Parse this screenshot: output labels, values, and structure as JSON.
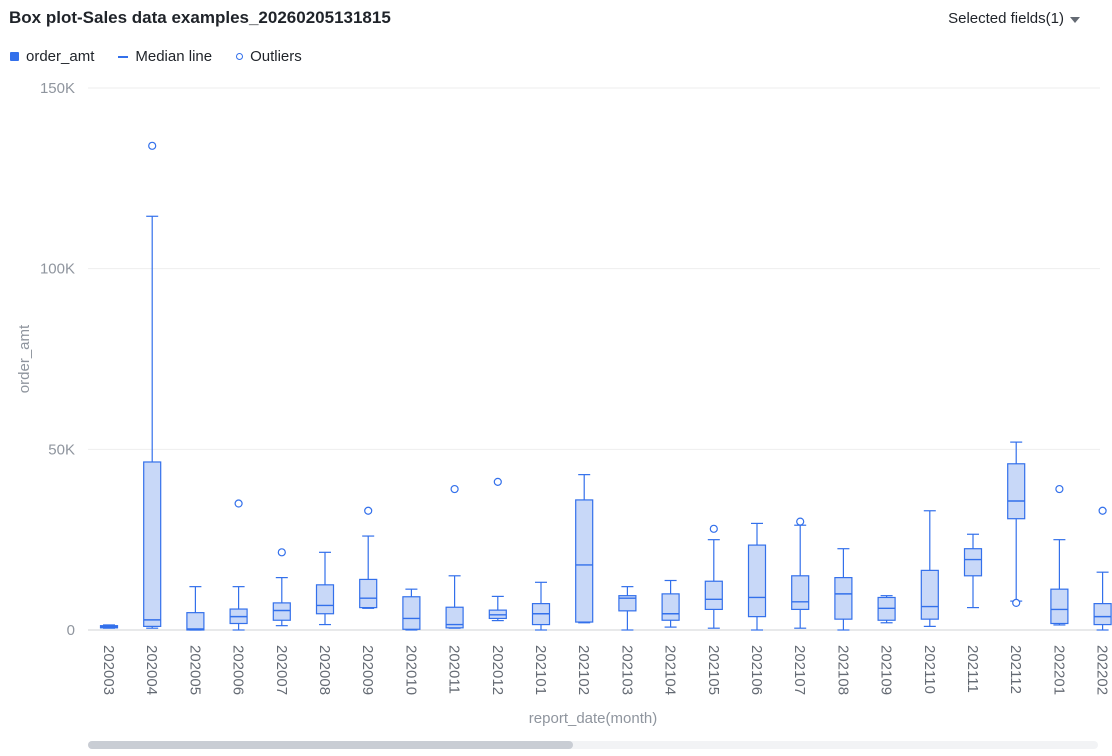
{
  "header": {
    "title": "Box plot-Sales data examples_20260205131815",
    "fields_label": "Selected fields(1)"
  },
  "legend": {
    "items": [
      "order_amt",
      "Median line",
      "Outliers"
    ]
  },
  "colors": {
    "accent": "#3370eb",
    "box_fill": "#c8d8f8",
    "grid": "#eeeeee",
    "axis_text": "#8f959e"
  },
  "scrollbar": {
    "visible_fraction": 0.48
  },
  "chart_data": {
    "type": "box",
    "xlabel": "report_date(month)",
    "ylabel": "order_amt",
    "ylim": [
      0,
      150000
    ],
    "yticks": [
      0,
      50000,
      100000,
      150000
    ],
    "ytick_labels": [
      "0",
      "50K",
      "100K",
      "150K"
    ],
    "grid": true,
    "legend_position": "top-left",
    "categories": [
      "202003",
      "202004",
      "202005",
      "202006",
      "202007",
      "202008",
      "202009",
      "202010",
      "202011",
      "202012",
      "202101",
      "202102",
      "202103",
      "202104",
      "202105",
      "202106",
      "202107",
      "202108",
      "202109",
      "202110",
      "202111",
      "202112",
      "202201",
      "202202"
    ],
    "boxes": [
      {
        "min": 500,
        "q1": 600,
        "median": 900,
        "q3": 1200,
        "max": 1400,
        "outliers": []
      },
      {
        "min": 500,
        "q1": 1000,
        "median": 2800,
        "q3": 46500,
        "max": 114500,
        "outliers": [
          134000
        ]
      },
      {
        "min": 0,
        "q1": 0,
        "median": 300,
        "q3": 4800,
        "max": 12000,
        "outliers": []
      },
      {
        "min": 0,
        "q1": 1800,
        "median": 3700,
        "q3": 5800,
        "max": 12000,
        "outliers": [
          35000
        ]
      },
      {
        "min": 1200,
        "q1": 2700,
        "median": 5400,
        "q3": 7500,
        "max": 14500,
        "outliers": [
          21500
        ]
      },
      {
        "min": 1500,
        "q1": 4500,
        "median": 6800,
        "q3": 12500,
        "max": 21500,
        "outliers": []
      },
      {
        "min": 6000,
        "q1": 6200,
        "median": 8800,
        "q3": 14000,
        "max": 26000,
        "outliers": [
          33000
        ]
      },
      {
        "min": 0,
        "q1": 200,
        "median": 3200,
        "q3": 9200,
        "max": 11300,
        "outliers": []
      },
      {
        "min": 500,
        "q1": 600,
        "median": 1500,
        "q3": 6300,
        "max": 15000,
        "outliers": [
          39000
        ]
      },
      {
        "min": 2600,
        "q1": 3200,
        "median": 4200,
        "q3": 5500,
        "max": 9300,
        "outliers": [
          41000
        ]
      },
      {
        "min": 0,
        "q1": 1500,
        "median": 4500,
        "q3": 7300,
        "max": 13200,
        "outliers": []
      },
      {
        "min": 2000,
        "q1": 2200,
        "median": 18000,
        "q3": 36000,
        "max": 43000,
        "outliers": []
      },
      {
        "min": 0,
        "q1": 5300,
        "median": 8800,
        "q3": 9500,
        "max": 12000,
        "outliers": []
      },
      {
        "min": 800,
        "q1": 2700,
        "median": 4500,
        "q3": 10000,
        "max": 13700,
        "outliers": []
      },
      {
        "min": 500,
        "q1": 5700,
        "median": 8500,
        "q3": 13500,
        "max": 25000,
        "outliers": [
          28000
        ]
      },
      {
        "min": 0,
        "q1": 3700,
        "median": 9000,
        "q3": 23500,
        "max": 29500,
        "outliers": []
      },
      {
        "min": 500,
        "q1": 5700,
        "median": 7800,
        "q3": 15000,
        "max": 29000,
        "outliers": [
          30000
        ]
      },
      {
        "min": 0,
        "q1": 3000,
        "median": 10000,
        "q3": 14500,
        "max": 22500,
        "outliers": []
      },
      {
        "min": 2000,
        "q1": 2700,
        "median": 6000,
        "q3": 9000,
        "max": 9500,
        "outliers": []
      },
      {
        "min": 1000,
        "q1": 3000,
        "median": 6500,
        "q3": 16500,
        "max": 33000,
        "outliers": []
      },
      {
        "min": 6200,
        "q1": 15000,
        "median": 19500,
        "q3": 22500,
        "max": 26500,
        "outliers": []
      },
      {
        "min": 8000,
        "q1": 30800,
        "median": 35700,
        "q3": 46000,
        "max": 52000,
        "outliers": [
          7500
        ]
      },
      {
        "min": 1400,
        "q1": 1800,
        "median": 5700,
        "q3": 11300,
        "max": 25000,
        "outliers": [
          39000
        ]
      },
      {
        "min": 0,
        "q1": 1500,
        "median": 3700,
        "q3": 7300,
        "max": 16000,
        "outliers": [
          33000
        ]
      }
    ]
  }
}
